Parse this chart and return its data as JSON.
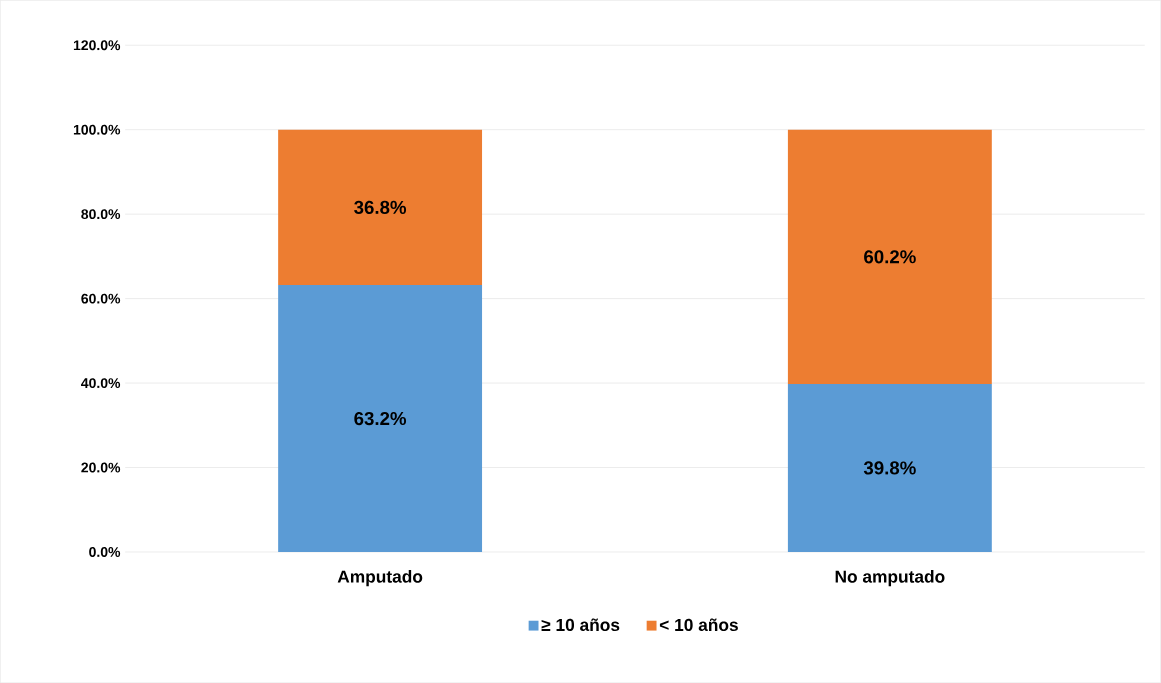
{
  "chart_data": {
    "type": "bar",
    "stacked": true,
    "categories": [
      "Amputado",
      "No amputado"
    ],
    "series": [
      {
        "name": "≥ 10 años",
        "color": "#5b9bd5",
        "values": [
          63.2,
          39.8
        ],
        "value_labels": [
          "63.2%",
          "39.8%"
        ]
      },
      {
        "name": "< 10 años",
        "color": "#ed7d31",
        "values": [
          36.8,
          60.2
        ],
        "value_labels": [
          "36.8%",
          "60.2%"
        ]
      }
    ],
    "ylim": [
      0,
      120
    ],
    "yticks": [
      {
        "value": 0,
        "label": "0.0%"
      },
      {
        "value": 20,
        "label": "20.0%"
      },
      {
        "value": 40,
        "label": "40.0%"
      },
      {
        "value": 60,
        "label": "60.0%"
      },
      {
        "value": 80,
        "label": "80.0%"
      },
      {
        "value": 100,
        "label": "100.0%"
      },
      {
        "value": 120,
        "label": "120.0%"
      }
    ],
    "grid": "y",
    "legend": "bottom"
  }
}
